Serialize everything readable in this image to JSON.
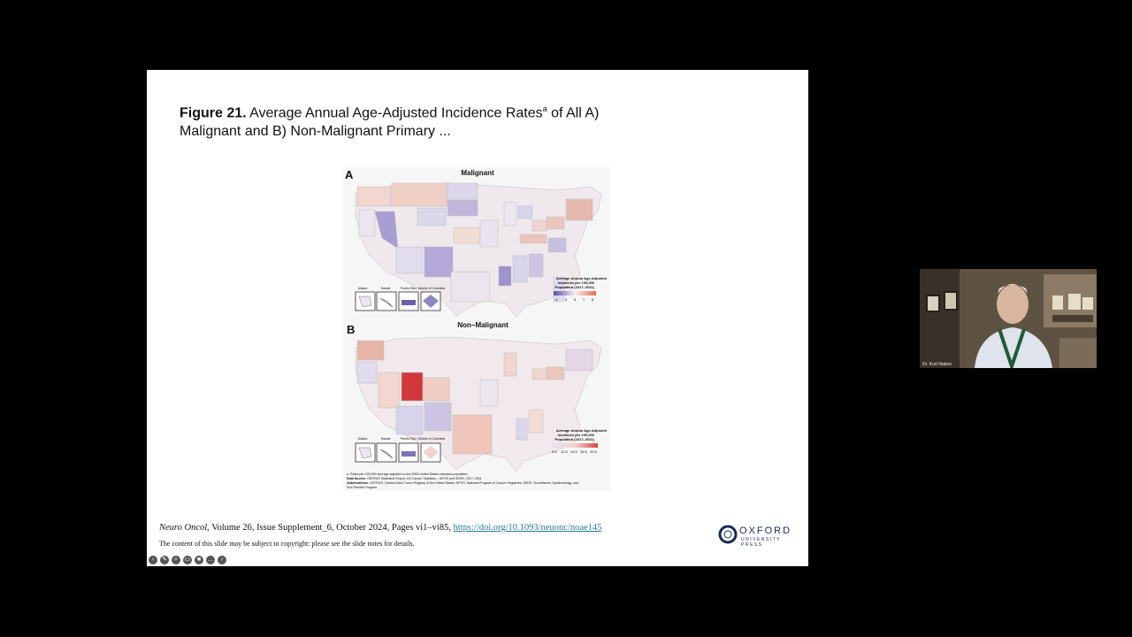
{
  "slide": {
    "title_bold": "Figure 21.",
    "title_rest": " Average Annual Age-Adjusted Incidence Rates",
    "title_sup": "a",
    "title_rest2": " of All A) Malignant and B) Non-Malignant Primary ...",
    "citation_journal": "Neuro Oncol",
    "citation_details": ", Volume 26, Issue Supplement_6, October 2024, Pages vi1–vi85, ",
    "citation_link": "https://doi.org/10.1093/neuonc/noae145",
    "copyright": "The content of this slide may be subject to copyright: please see the slide notes for details.",
    "publisher_name": "OXFORD",
    "publisher_sub": "UNIVERSITY PRESS"
  },
  "figure": {
    "panel_a_letter": "A",
    "panel_a_title": "Malignant",
    "panel_b_letter": "B",
    "panel_b_title": "Non−Malignant",
    "insets": [
      "Alaska",
      "Hawaii",
      "Puerto Rico",
      "District of Columbia"
    ],
    "legend_a_title1": "Average Annual Age-Adjusted",
    "legend_a_title2": "Incidence per 100,000",
    "legend_a_title3": "Population (2017–2021)",
    "legend_a_ticks": [
      "4",
      "5",
      "6",
      "7",
      "8"
    ],
    "legend_b_title1": "Average Annual Age-Adjusted",
    "legend_b_title2": "Incidence per 100,000",
    "legend_b_title3": "Population (2017–2021)",
    "legend_b_ticks": [
      "5.5",
      "12.5",
      "19.5",
      "26.5",
      "33.5"
    ],
    "footnote1": "a. Rates per 100,000 and age-adjusted to the 2000 United States standard population.",
    "footnote2_label": "Data Source",
    "footnote2": ": CBTRUS Statistical Report: US Cancer Statistics – NPCR and SEER, 2017–2021",
    "footnote3_label": "Abbreviations",
    "footnote3": ": CBTRUS, Central Brain Tumor Registry of the United States; NPCR, National Program of Cancer Registries; SEER, Surveillance, Epidemiology, and",
    "footnote4": "End Results Program.",
    "colors": {
      "low": "#7b6fb8",
      "mid": "#f2eef0",
      "high": "#d8443e"
    }
  },
  "webcam": {
    "label": "Dr. Kurt Naboo"
  },
  "toolbar": {
    "icons": [
      "back-icon",
      "pen-icon",
      "zoom-icon",
      "captions-icon",
      "video-icon",
      "more-icon",
      "forward-icon"
    ],
    "glyphs": [
      "‹",
      "✎",
      "⌕",
      "▭",
      "■",
      "…",
      "›"
    ]
  }
}
